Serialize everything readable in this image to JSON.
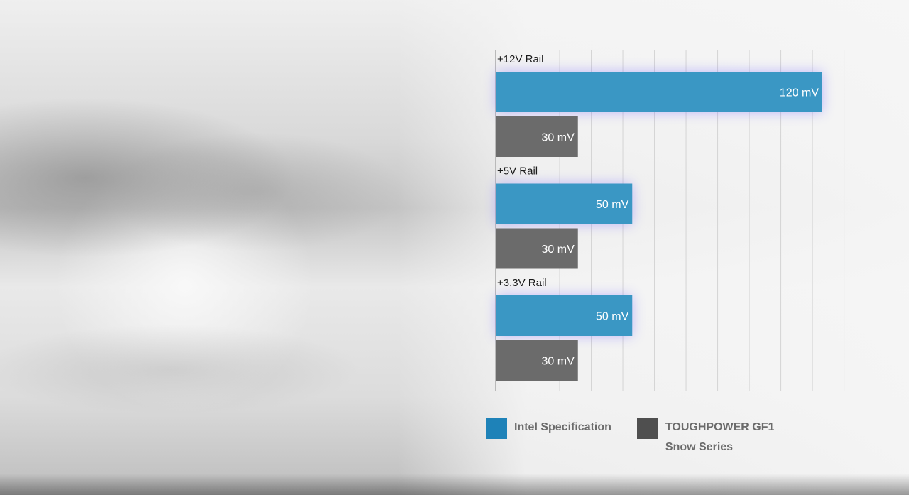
{
  "chart_data": {
    "type": "bar",
    "orientation": "horizontal",
    "categories": [
      "+12V Rail",
      "+5V Rail",
      "+3.3V Rail"
    ],
    "series": [
      {
        "name": "Intel Specification",
        "values": [
          120,
          50,
          50
        ],
        "labels": [
          "120 mV",
          "50 mV",
          "50 mV"
        ],
        "color": "#3a97c4"
      },
      {
        "name": "TOUGHPOWER GF1 Snow Series",
        "values": [
          30,
          30,
          30
        ],
        "labels": [
          "30 mV",
          "30 mV",
          "30 mV"
        ],
        "color": "#6b6b6b"
      }
    ],
    "xlim": [
      0,
      128
    ],
    "grid": true,
    "legend_position": "bottom"
  },
  "legend": [
    {
      "lines": [
        "Intel Specification"
      ],
      "color": "#1e82b8"
    },
    {
      "lines": [
        "TOUGHPOWER GF1",
        "Snow Series"
      ],
      "color": "#4f4f4f"
    }
  ]
}
